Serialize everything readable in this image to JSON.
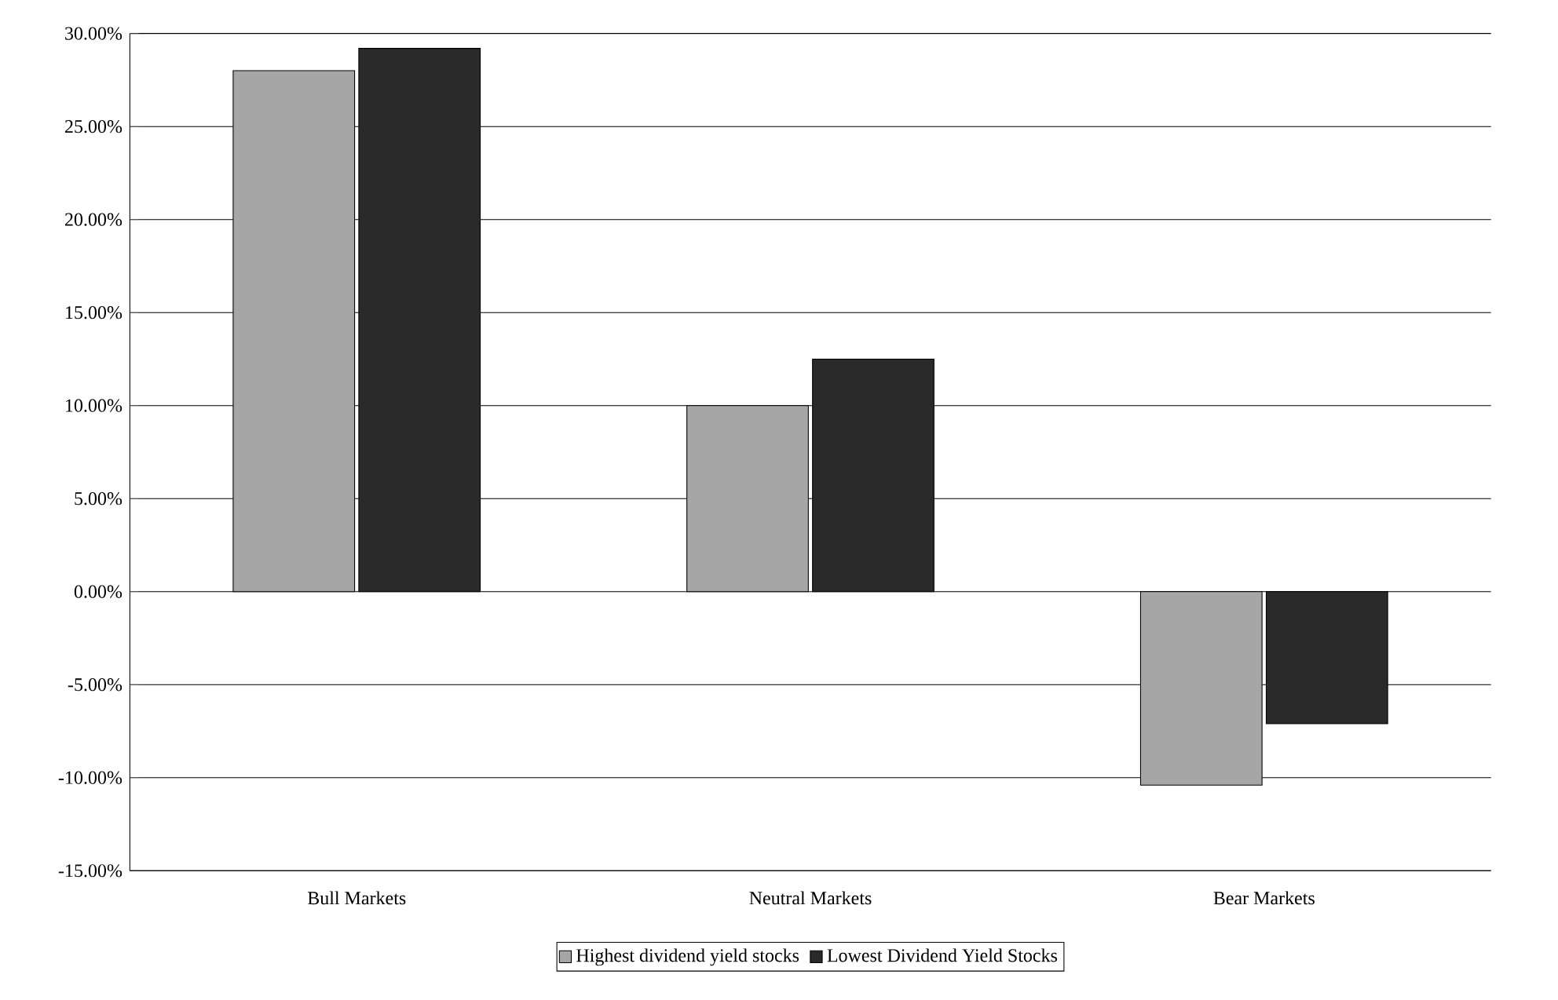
{
  "chart_data": {
    "type": "bar",
    "categories": [
      "Bull Markets",
      "Neutral Markets",
      "Bear Markets"
    ],
    "series": [
      {
        "name": "Highest dividend yield stocks",
        "color": "#a6a6a6",
        "values": [
          28,
          10,
          -10.4
        ]
      },
      {
        "name": "Lowest Dividend Yield Stocks",
        "color": "#2a2a2a",
        "values": [
          29.2,
          12.5,
          -7.1
        ]
      }
    ],
    "ylim": [
      -15,
      30
    ],
    "yticks": [
      {
        "value": -15,
        "label": "-15.00%"
      },
      {
        "value": -10,
        "label": "-10.00%"
      },
      {
        "value": -5,
        "label": "-5.00%"
      },
      {
        "value": 0,
        "label": "0.00%"
      },
      {
        "value": 5,
        "label": "5.00%"
      },
      {
        "value": 10,
        "label": "10.00%"
      },
      {
        "value": 15,
        "label": "15.00%"
      },
      {
        "value": 20,
        "label": "20.00%"
      },
      {
        "value": 25,
        "label": "25.00%"
      },
      {
        "value": 30,
        "label": "30.00%"
      }
    ],
    "grid": "y",
    "legend": "bottom"
  }
}
